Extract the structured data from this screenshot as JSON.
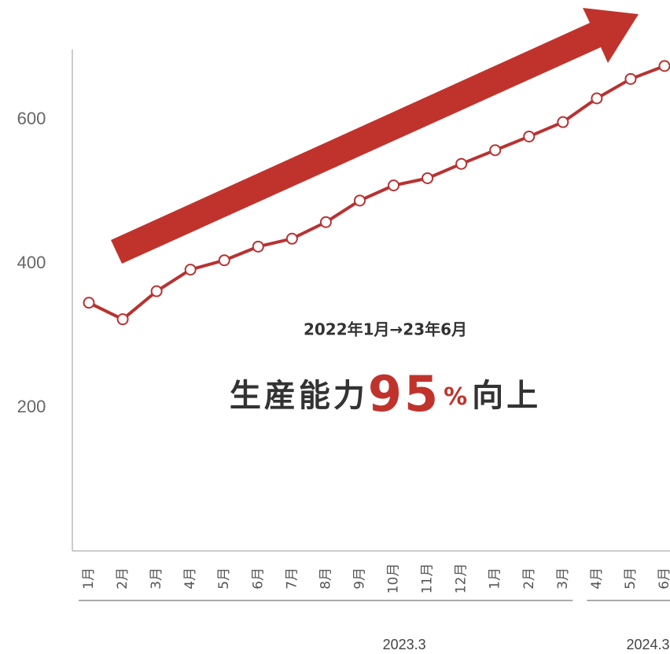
{
  "chart_data": {
    "type": "line",
    "categories": [
      "1月",
      "2月",
      "3月",
      "4月",
      "5月",
      "6月",
      "7月",
      "8月",
      "9月",
      "10月",
      "11月",
      "12月",
      "1月",
      "2月",
      "3月",
      "4月",
      "5月",
      "6月"
    ],
    "x_groups": [
      {
        "label": "2023.3",
        "count": 15
      },
      {
        "label": "2024.3",
        "count": 3
      }
    ],
    "series": [
      {
        "color": "#b83232",
        "values": [
          346,
          323,
          362,
          392,
          405,
          424,
          435,
          458,
          488,
          509,
          519,
          539,
          558,
          577,
          597,
          630,
          657,
          675
        ]
      }
    ],
    "ylim": [
      0,
      700
    ],
    "yticks": [
      200,
      400,
      600
    ],
    "grid": false,
    "annotations": {
      "period": "2022年1月→23年6月",
      "prefix": "生産能力",
      "number": "95",
      "unit": "%",
      "suffix": "向上"
    }
  }
}
